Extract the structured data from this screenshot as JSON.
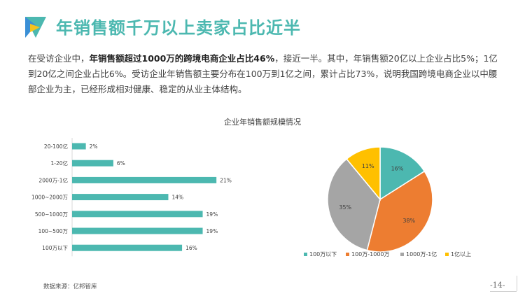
{
  "title": "年销售额千万以上卖家占比近半",
  "intro": {
    "p1": "在受访企业中，",
    "bold": "年销售额超过1000万的跨境电商企业占比46%",
    "p2": "，接近一半。其中，年销售额20亿以上企业占比5%；1亿到20亿之间企业占比6%。受访企业年销售额主要分布在100万到1亿之间，累计占比73%，说明我国跨境电商企业以中腰部企业为主，已经形成相对健康、稳定的从业主体结构。"
  },
  "source": "数据来源：亿邦智库",
  "page_number": "-14-",
  "colors": {
    "accent": "#4cb8b0",
    "bar": "#4cb8b0",
    "pie": [
      "#4cb8b0",
      "#ed7d31",
      "#a5a5a5",
      "#ffc000"
    ]
  },
  "chart_data": [
    {
      "type": "bar",
      "orientation": "horizontal",
      "categories": [
        "20-100亿",
        "1-20亿",
        "2000万-1亿",
        "1000~2000万",
        "500~1000万",
        "100~500万",
        "100万以下"
      ],
      "values": [
        2,
        6,
        21,
        14,
        19,
        19,
        16
      ],
      "value_labels": [
        "2%",
        "6%",
        "21%",
        "14%",
        "19%",
        "19%",
        "16%"
      ],
      "xlim": [
        0,
        22
      ],
      "grid": false,
      "legend": "none"
    },
    {
      "type": "pie",
      "title": "企业年销售额规模情况",
      "labels": [
        "100万以下",
        "100万-1000万",
        "1000万-1亿",
        "1亿以上"
      ],
      "values": [
        16,
        38,
        35,
        11
      ],
      "value_labels": [
        "16%",
        "38%",
        "35%",
        "11%"
      ],
      "legend": "bottom"
    }
  ]
}
